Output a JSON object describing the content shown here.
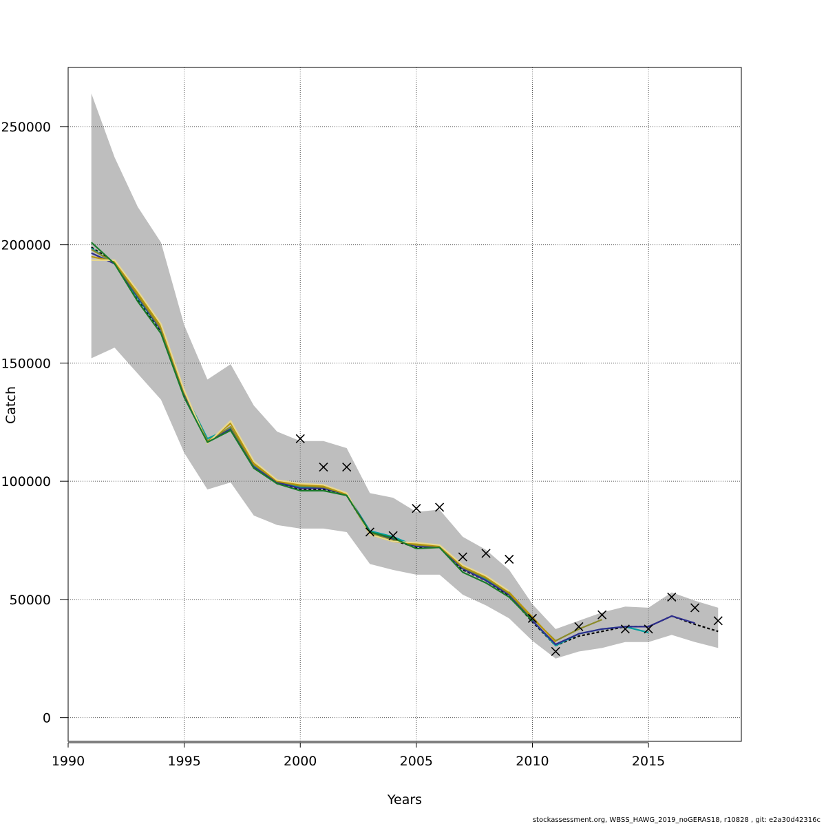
{
  "chart_data": {
    "type": "line",
    "xlabel": "Years",
    "ylabel": "Catch",
    "xlim": [
      1990,
      2019
    ],
    "ylim": [
      -10000,
      275000
    ],
    "xticks": [
      1990,
      1995,
      2000,
      2005,
      2010,
      2015
    ],
    "yticks": [
      0,
      50000,
      100000,
      150000,
      200000,
      250000
    ],
    "xtick_labels": [
      "1990",
      "1995",
      "2000",
      "2005",
      "2010",
      "2015"
    ],
    "ytick_labels": [
      "0",
      "50000",
      "100000",
      "150000",
      "200000",
      "250000"
    ],
    "grid": true,
    "band": {
      "color": "#bebebe",
      "x": [
        1991,
        1992,
        1993,
        1994,
        1995,
        1996,
        1997,
        1998,
        1999,
        2000,
        2001,
        2002,
        2003,
        2004,
        2005,
        2006,
        2007,
        2008,
        2009,
        2010,
        2011,
        2012,
        2013,
        2014,
        2015,
        2016,
        2017,
        2018
      ],
      "upper": [
        264000,
        237000,
        216000,
        201000,
        166000,
        143000,
        149500,
        132000,
        121000,
        117000,
        117000,
        114000,
        95000,
        93000,
        87000,
        88000,
        76500,
        71000,
        62500,
        48000,
        37500,
        41000,
        44500,
        47000,
        46500,
        53000,
        49500,
        46500
      ],
      "lower": [
        152000,
        156500,
        145500,
        134500,
        112000,
        96500,
        99500,
        85500,
        81500,
        80000,
        80000,
        78500,
        65000,
        62500,
        60500,
        60500,
        52000,
        47500,
        42000,
        32500,
        25000,
        28000,
        29500,
        32000,
        32000,
        35000,
        32000,
        29500
      ]
    },
    "observations": {
      "marker": "x",
      "color": "#000000",
      "x": [
        2000,
        2001,
        2002,
        2003,
        2004,
        2005,
        2006,
        2007,
        2008,
        2009,
        2010,
        2011,
        2012,
        2013,
        2014,
        2015,
        2016,
        2017,
        2018
      ],
      "y": [
        118000,
        106000,
        106000,
        78500,
        77000,
        88500,
        89000,
        68000,
        69500,
        67000,
        42000,
        28000,
        38500,
        43500,
        37500,
        37500,
        51000,
        46500,
        41000
      ]
    },
    "series": [
      {
        "color": "#000000",
        "dash": "4,3",
        "x": [
          1991,
          1992,
          1993,
          1994,
          1995,
          1996,
          1997,
          1998,
          1999,
          2000,
          2001,
          2002,
          2003,
          2004,
          2005,
          2006,
          2007,
          2008,
          2009,
          2010,
          2011,
          2012,
          2013,
          2014,
          2015,
          2016,
          2017,
          2018
        ],
        "y": [
          199000,
          192500,
          177000,
          163500,
          136500,
          117000,
          122000,
          106000,
          99000,
          96500,
          96500,
          94000,
          78000,
          75000,
          72000,
          72000,
          62500,
          58000,
          51500,
          40500,
          30500,
          34500,
          36500,
          38500,
          38500,
          43000,
          39500,
          36500
        ]
      },
      {
        "color": "#00a0a0",
        "x": [
          1991,
          1992,
          1993,
          1994,
          1995,
          1996,
          1997,
          1998,
          1999,
          2000,
          2001,
          2002,
          2003,
          2004,
          2005,
          2006,
          2007,
          2008,
          2009,
          2010,
          2011,
          2012,
          2013,
          2014,
          2015
        ],
        "y": [
          198500,
          192000,
          177500,
          164000,
          137500,
          118000,
          122500,
          106500,
          99500,
          97500,
          97500,
          94500,
          79000,
          76500,
          72500,
          72500,
          63000,
          58500,
          52000,
          41000,
          30500,
          35500,
          37500,
          38500,
          36000
        ]
      },
      {
        "color": "#2e2e8e",
        "x": [
          1991,
          1992,
          1993,
          1994,
          1995,
          1996,
          1997,
          1998,
          1999,
          2000,
          2001,
          2002,
          2003,
          2004,
          2005,
          2006,
          2007,
          2008,
          2009,
          2010,
          2011,
          2012,
          2013,
          2014,
          2015,
          2016,
          2017
        ],
        "y": [
          196500,
          192000,
          178000,
          164000,
          137000,
          117000,
          122000,
          106000,
          99500,
          97000,
          97000,
          94500,
          78500,
          75500,
          72500,
          72000,
          63000,
          58000,
          52000,
          41000,
          31000,
          35500,
          37500,
          38500,
          38500,
          43000,
          40000
        ]
      },
      {
        "color": "#8b8b2a",
        "x": [
          1991,
          1992,
          1993,
          1994,
          1995,
          1996,
          1997,
          1998,
          1999,
          2000,
          2001,
          2002,
          2003,
          2004,
          2005,
          2006,
          2007,
          2008,
          2009,
          2010,
          2011,
          2012,
          2013
        ],
        "y": [
          198000,
          192500,
          178500,
          164500,
          137500,
          117000,
          123000,
          107000,
          100000,
          98000,
          97500,
          94500,
          78000,
          75000,
          73000,
          72500,
          63500,
          59000,
          52500,
          42000,
          32500,
          37500,
          41500
        ]
      },
      {
        "color": "#b8960b",
        "x": [
          1991,
          1992,
          1993,
          1994,
          1995,
          1996,
          1997,
          1998,
          1999,
          2000,
          2001,
          2002,
          2003,
          2004,
          2005,
          2006,
          2007,
          2008,
          2009,
          2010,
          2011
        ],
        "y": [
          195000,
          193000,
          179500,
          165500,
          138000,
          116500,
          124500,
          107500,
          100000,
          98500,
          98000,
          94500,
          77500,
          74500,
          73500,
          72500,
          64000,
          59500,
          53000,
          42500,
          32000
        ]
      },
      {
        "color": "#e8d890",
        "x": [
          1991,
          1992,
          1993,
          1994,
          1995,
          1996,
          1997,
          1998,
          1999,
          2000,
          2001,
          2002,
          2003,
          2004,
          2005,
          2006,
          2007,
          2008,
          2009
        ],
        "y": [
          193500,
          193500,
          180500,
          166500,
          138500,
          116000,
          125500,
          108500,
          100500,
          99000,
          98500,
          95000,
          77500,
          74500,
          74000,
          73000,
          64500,
          60000,
          53500
        ]
      },
      {
        "color": "#1a7a2a",
        "x": [
          1991,
          1992,
          1993,
          1994,
          1995,
          1996,
          1997,
          1998,
          1999,
          2000,
          2001,
          2002,
          2003,
          2004,
          2005,
          2006,
          2007,
          2008,
          2009,
          2010
        ],
        "y": [
          201000,
          192000,
          176000,
          162500,
          135500,
          116500,
          121500,
          105500,
          99000,
          96000,
          96000,
          94000,
          78500,
          76000,
          71500,
          72000,
          61500,
          57000,
          51000,
          41000
        ]
      }
    ]
  },
  "footer": {
    "text": "stockassessment.org, WBSS_HAWG_2019_noGERAS18, r10828 , git: e2a30d42316c"
  }
}
